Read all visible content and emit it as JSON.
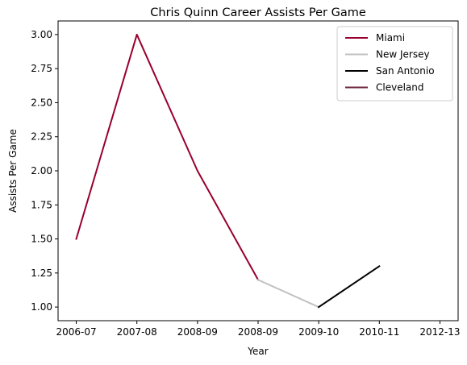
{
  "chart_data": {
    "type": "line",
    "title": "Chris Quinn Career Assists Per Game",
    "xlabel": "Year",
    "ylabel": "Assists Per Game",
    "x_tick_labels": [
      "2006-07",
      "2007-08",
      "2008-09",
      "2008-09",
      "2009-10",
      "2010-11",
      "2012-13"
    ],
    "ylim": [
      0.9,
      3.1
    ],
    "y_ticks": [
      "1.00",
      "1.25",
      "1.50",
      "1.75",
      "2.00",
      "2.25",
      "2.50",
      "2.75",
      "3.00"
    ],
    "grid": false,
    "legend_position": "top-right",
    "series": [
      {
        "name": "Miami",
        "color": "#98002E",
        "points": [
          [
            0,
            1.5
          ],
          [
            1,
            3.0
          ],
          [
            2,
            2.0
          ],
          [
            3,
            1.2
          ]
        ]
      },
      {
        "name": "New Jersey",
        "color": "#C0C0C0",
        "points": [
          [
            3,
            1.2
          ],
          [
            4,
            1.0
          ]
        ]
      },
      {
        "name": "San Antonio",
        "color": "#000000",
        "points": [
          [
            4,
            1.0
          ],
          [
            5,
            1.3
          ]
        ]
      },
      {
        "name": "Cleveland",
        "color": "#6F263D",
        "points": []
      }
    ]
  }
}
